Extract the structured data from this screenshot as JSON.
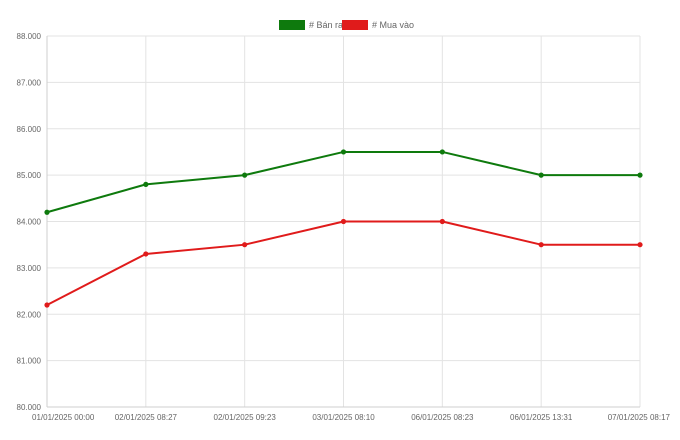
{
  "chart_data": {
    "type": "line",
    "title": "",
    "xlabel": "",
    "ylabel": "",
    "categories": [
      "01/01/2025 00:00",
      "02/01/2025 08:27",
      "02/01/2025 09:23",
      "03/01/2025 08:10",
      "06/01/2025 08:23",
      "06/01/2025 13:31",
      "07/01/2025 08:17"
    ],
    "ylim": [
      80000,
      88000
    ],
    "yticks": [
      {
        "value": 80000,
        "label": "80.000"
      },
      {
        "value": 81000,
        "label": "81.000"
      },
      {
        "value": 82000,
        "label": "82.000"
      },
      {
        "value": 83000,
        "label": "83.000"
      },
      {
        "value": 84000,
        "label": "84.000"
      },
      {
        "value": 85000,
        "label": "85.000"
      },
      {
        "value": 86000,
        "label": "86.000"
      },
      {
        "value": 87000,
        "label": "87.000"
      },
      {
        "value": 88000,
        "label": "88.000"
      }
    ],
    "grid": true,
    "legend_position": "top-center",
    "series": [
      {
        "name": "# Bán ra",
        "color": "#0e7a0d",
        "values": [
          84200,
          84800,
          85000,
          85500,
          85500,
          85000,
          85000
        ]
      },
      {
        "name": "# Mua vào",
        "color": "#e01b1b",
        "values": [
          82200,
          83300,
          83500,
          84000,
          84000,
          83500,
          83500
        ]
      }
    ]
  }
}
